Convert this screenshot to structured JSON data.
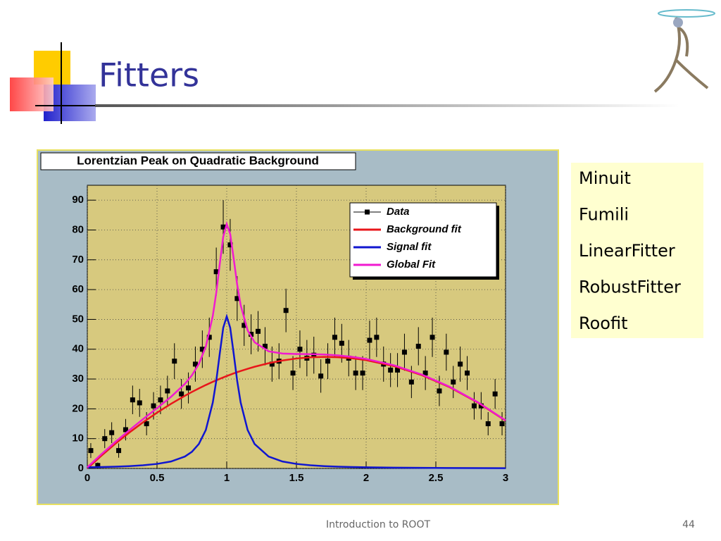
{
  "slide": {
    "title": "Fitters",
    "items": [
      "Minuit",
      "Fumili",
      "LinearFitter",
      "RobustFitter",
      "Roofit"
    ],
    "footer": "Introduction to ROOT",
    "page_number": "44"
  },
  "chart_data": {
    "type": "scatter",
    "title": "Lorentzian Peak on Quadratic Background",
    "xlim": [
      0,
      3
    ],
    "ylim": [
      0,
      95
    ],
    "xticks": [
      0,
      0.5,
      1,
      1.5,
      2,
      2.5,
      3
    ],
    "yticks": [
      0,
      10,
      20,
      30,
      40,
      50,
      60,
      70,
      80,
      90
    ],
    "grid": true,
    "legend": "top-right",
    "series": [
      {
        "name": "Data",
        "color": "#000000",
        "x": [
          0.025,
          0.075,
          0.125,
          0.175,
          0.225,
          0.275,
          0.325,
          0.375,
          0.425,
          0.475,
          0.525,
          0.575,
          0.625,
          0.675,
          0.725,
          0.775,
          0.825,
          0.875,
          0.925,
          0.975,
          1.025,
          1.075,
          1.125,
          1.175,
          1.225,
          1.275,
          1.325,
          1.375,
          1.425,
          1.475,
          1.525,
          1.575,
          1.625,
          1.675,
          1.725,
          1.775,
          1.825,
          1.875,
          1.925,
          1.975,
          2.025,
          2.075,
          2.125,
          2.175,
          2.225,
          2.275,
          2.325,
          2.375,
          2.425,
          2.475,
          2.525,
          2.575,
          2.625,
          2.675,
          2.725,
          2.775,
          2.825,
          2.875,
          2.925,
          2.975
        ],
        "values": [
          6,
          1,
          10,
          12,
          6,
          13,
          23,
          22,
          15,
          21,
          23,
          26,
          36,
          25,
          27,
          35,
          40,
          44,
          66,
          81,
          75,
          57,
          48,
          45,
          46,
          41,
          35,
          36,
          53,
          32,
          40,
          37,
          38,
          31,
          36,
          44,
          42,
          37,
          32,
          32,
          43,
          44,
          35,
          33,
          33,
          39,
          29,
          41,
          32,
          44,
          26,
          39,
          29,
          35,
          32,
          21,
          21,
          15,
          25,
          15
        ],
        "errors": [
          2.5,
          1,
          3.2,
          3.5,
          2.4,
          3.6,
          4.8,
          4.7,
          3.9,
          4.6,
          4.8,
          5.1,
          6,
          5,
          5.2,
          5.9,
          6.3,
          6.6,
          8.1,
          9,
          8.7,
          7.5,
          6.9,
          6.7,
          6.8,
          6.4,
          5.9,
          6,
          7.3,
          5.7,
          6.3,
          6.1,
          6.2,
          5.6,
          6,
          6.6,
          6.5,
          6.1,
          5.7,
          5.7,
          6.6,
          6.6,
          5.9,
          5.7,
          5.7,
          6.2,
          5.4,
          6.4,
          5.7,
          6.6,
          5.1,
          6.2,
          5.4,
          5.9,
          5.7,
          4.6,
          4.6,
          3.9,
          5,
          3.9
        ]
      },
      {
        "name": "Background fit",
        "color": "#e8161a",
        "x": [
          0,
          0.1,
          0.2,
          0.3,
          0.4,
          0.5,
          0.6,
          0.7,
          0.75,
          0.8,
          0.85,
          0.9,
          0.925,
          0.95,
          0.975,
          1,
          1.025,
          1.05,
          1.075,
          1.1,
          1.15,
          1.2,
          1.3,
          1.4,
          1.5,
          1.6,
          1.7,
          1.8,
          1.9,
          2,
          2.2,
          2.4,
          2.6,
          2.8,
          3
        ],
        "values": [
          0,
          4.25,
          8.26,
          12,
          15.48,
          18.71,
          21.68,
          24.39,
          25.65,
          26.85,
          27.99,
          29.06,
          29.56,
          30.06,
          30.53,
          31,
          31.45,
          31.88,
          32.29,
          32.69,
          33.43,
          34.12,
          35.3,
          36.21,
          36.88,
          37.29,
          37.43,
          37.32,
          36.96,
          36.34,
          34.33,
          31.29,
          27.23,
          22.13,
          16.02
        ]
      },
      {
        "name": "Signal fit",
        "color": "#1016d0",
        "x": [
          0,
          0.1,
          0.2,
          0.3,
          0.4,
          0.5,
          0.6,
          0.7,
          0.75,
          0.8,
          0.85,
          0.9,
          0.925,
          0.95,
          0.975,
          1,
          1.025,
          1.05,
          1.075,
          1.1,
          1.15,
          1.2,
          1.3,
          1.4,
          1.5,
          1.6,
          1.7,
          1.8,
          1.9,
          2,
          2.2,
          2.4,
          2.6,
          2.8,
          3
        ],
        "values": [
          0.39,
          0.48,
          0.6,
          0.78,
          1.06,
          1.52,
          2.33,
          4,
          5.57,
          8.2,
          12.9,
          22.1,
          29.4,
          38.5,
          47.2,
          51,
          47.2,
          38.5,
          29.4,
          22.1,
          12.9,
          8.2,
          4,
          2.33,
          1.52,
          1.06,
          0.78,
          0.6,
          0.48,
          0.39,
          0.27,
          0.2,
          0.15,
          0.12,
          0.1
        ]
      },
      {
        "name": "Global Fit",
        "color": "#f01ad0",
        "x": [
          0,
          0.1,
          0.2,
          0.3,
          0.4,
          0.5,
          0.6,
          0.7,
          0.75,
          0.8,
          0.85,
          0.9,
          0.925,
          0.95,
          0.975,
          1,
          1.025,
          1.05,
          1.075,
          1.1,
          1.15,
          1.2,
          1.3,
          1.4,
          1.5,
          1.6,
          1.7,
          1.8,
          1.9,
          2,
          2.2,
          2.4,
          2.6,
          2.8,
          3
        ],
        "values": [
          0.39,
          4.73,
          8.86,
          12.78,
          16.54,
          20.23,
          24.01,
          28.39,
          31.22,
          35.05,
          40.89,
          51.16,
          58.96,
          68.56,
          77.73,
          82,
          78.65,
          70.38,
          61.69,
          54.79,
          46.33,
          42.32,
          39.3,
          38.54,
          38.4,
          38.35,
          38.21,
          37.92,
          37.44,
          36.73,
          34.6,
          31.49,
          27.38,
          22.25,
          16.12
        ]
      }
    ]
  }
}
